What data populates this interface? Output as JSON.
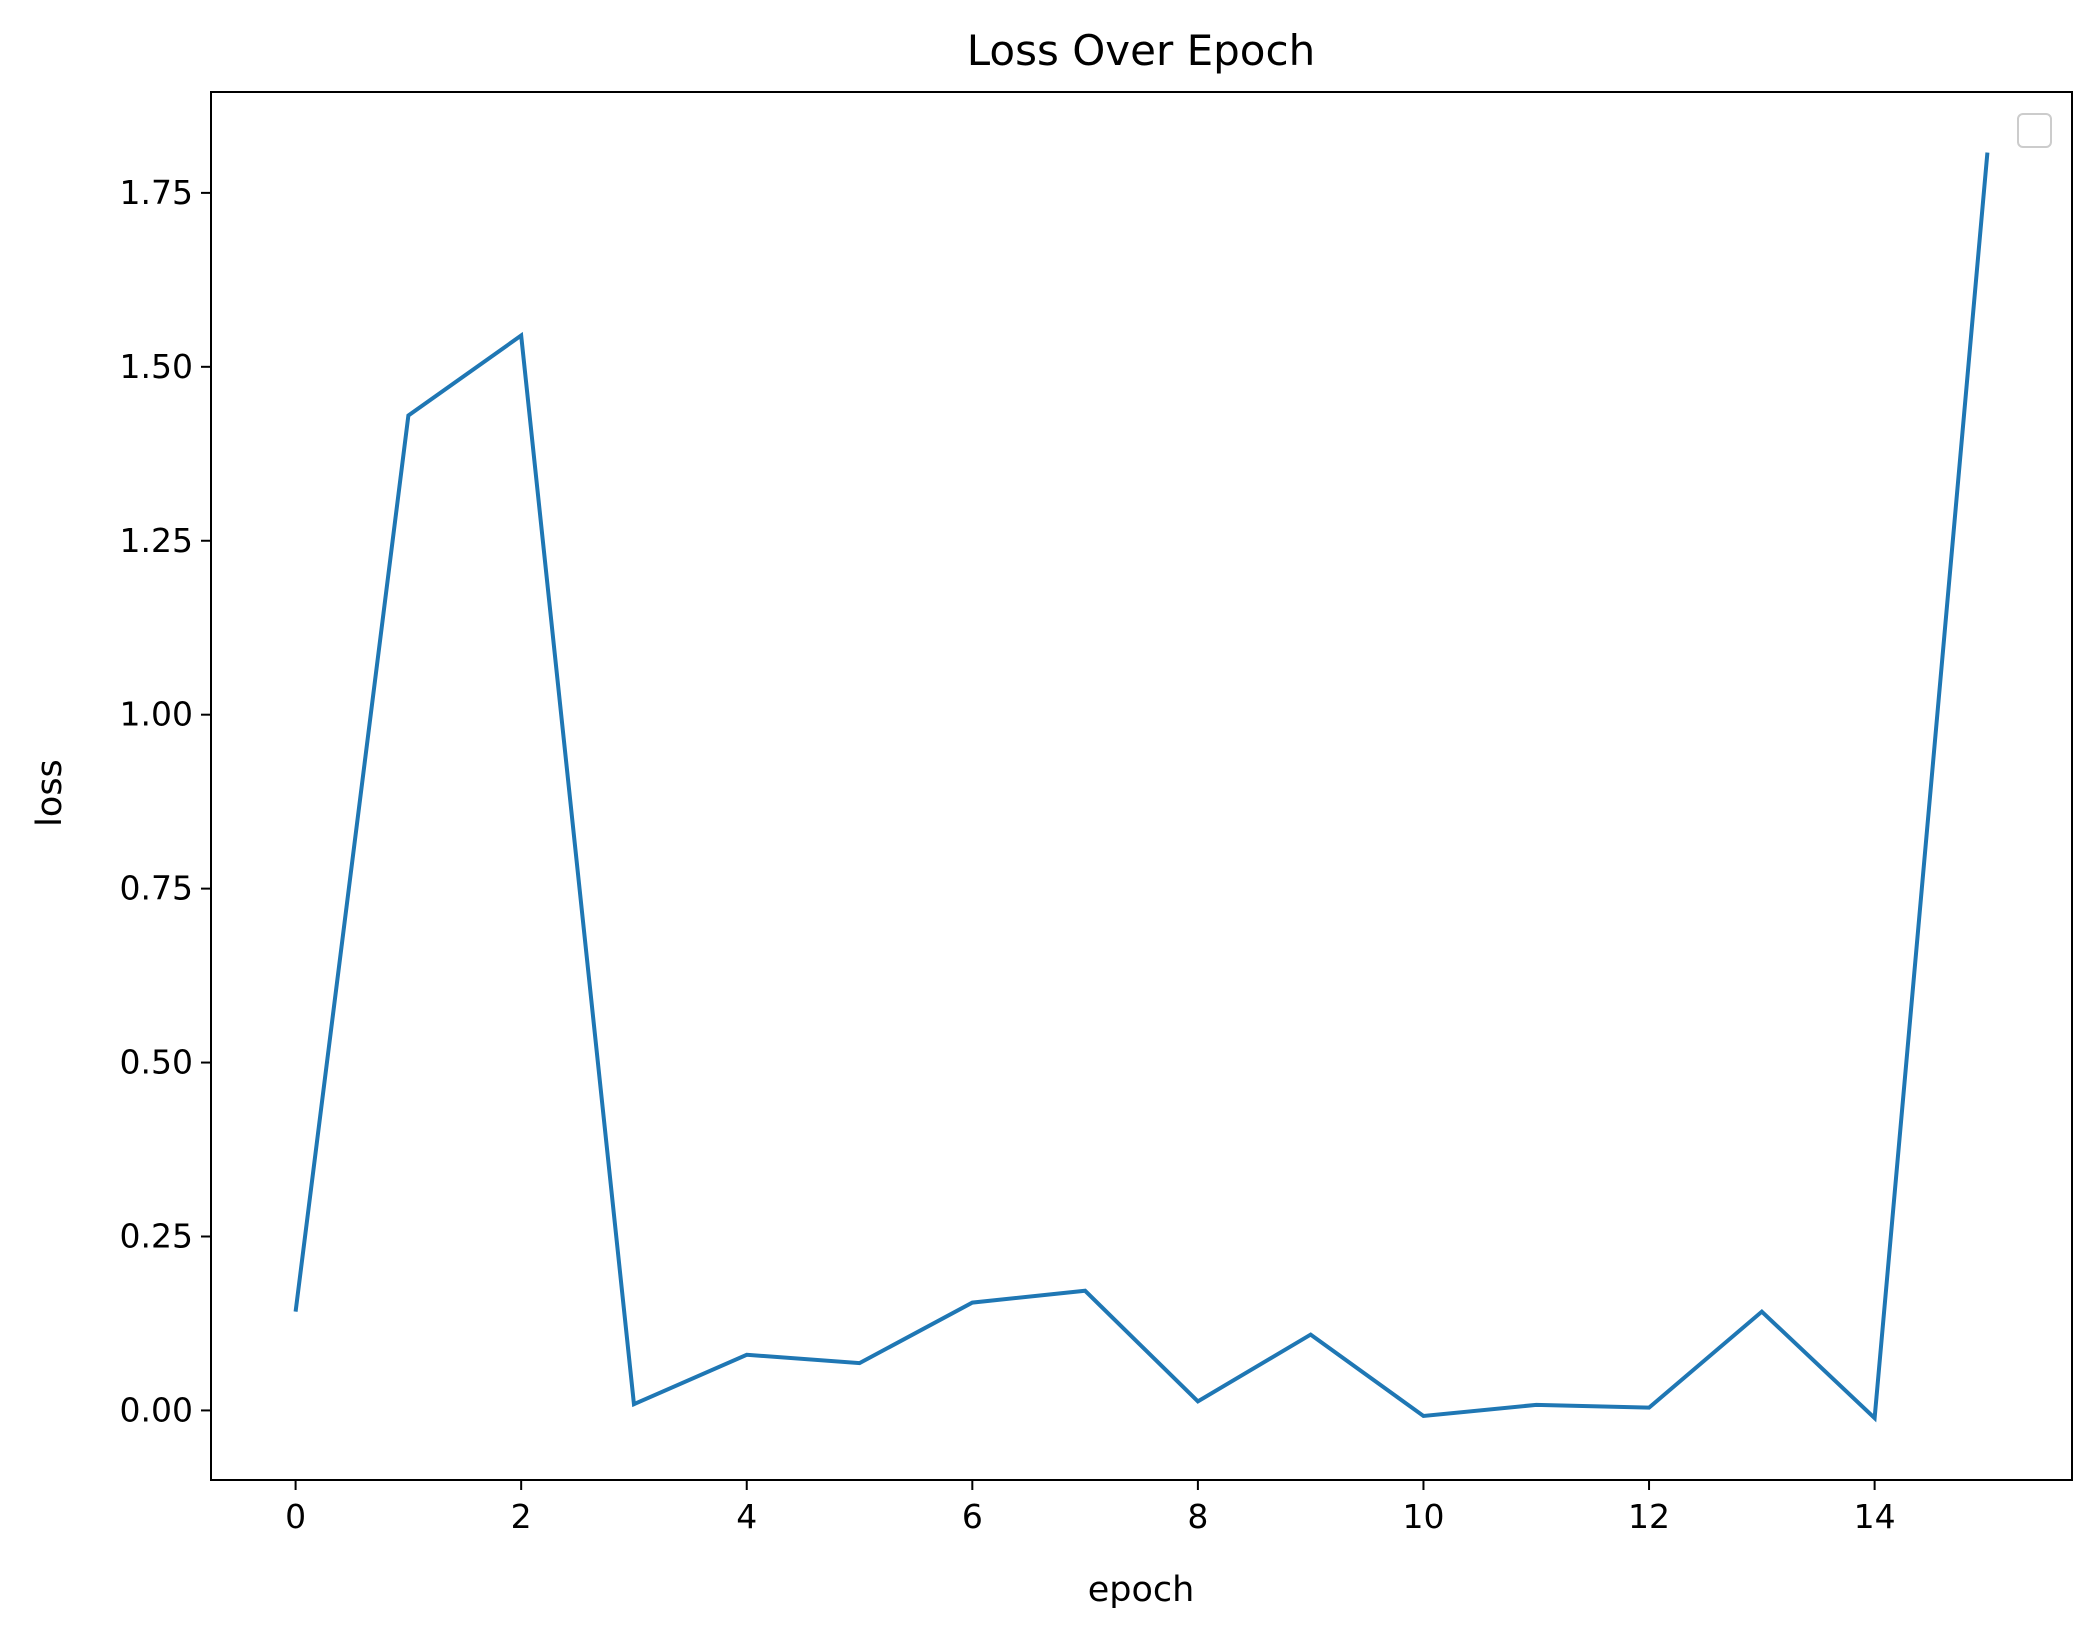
{
  "chart_data": {
    "type": "line",
    "title": "Loss Over Epoch",
    "xlabel": "epoch",
    "ylabel": "loss",
    "x": [
      0,
      1,
      2,
      3,
      4,
      5,
      6,
      7,
      8,
      9,
      10,
      11,
      12,
      13,
      14,
      15
    ],
    "series": [
      {
        "values": [
          0.142,
          1.43,
          1.545,
          0.009,
          0.08,
          0.068,
          0.155,
          0.172,
          0.013,
          0.109,
          -0.008,
          0.008,
          0.004,
          0.142,
          -0.011,
          1.808
        ],
        "color": "#1f77b4"
      }
    ],
    "xlim": [
      -0.75,
      15.75
    ],
    "ylim": [
      -0.1,
      1.895
    ],
    "xticks": [
      0,
      2,
      4,
      6,
      8,
      10,
      12,
      14
    ],
    "yticks": [
      0.0,
      0.25,
      0.5,
      0.75,
      1.0,
      1.25,
      1.5,
      1.75
    ],
    "xtick_labels": [
      "0",
      "2",
      "4",
      "6",
      "8",
      "10",
      "12",
      "14"
    ],
    "ytick_labels": [
      "0.00",
      "0.25",
      "0.50",
      "0.75",
      "1.00",
      "1.25",
      "1.50",
      "1.75"
    ],
    "grid": false,
    "legend": {
      "placement": "top-right",
      "entries": []
    }
  }
}
